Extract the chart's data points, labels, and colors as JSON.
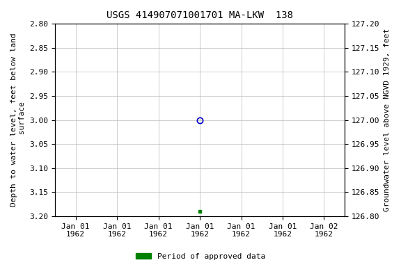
{
  "title": "USGS 414907071001701 MA-LKW  138",
  "ylabel_left": "Depth to water level, feet below land\n surface",
  "ylabel_right": "Groundwater level above NGVD 1929, feet",
  "ylim_left": [
    2.8,
    3.2
  ],
  "ylim_right": [
    127.2,
    126.8
  ],
  "yticks_left": [
    2.8,
    2.85,
    2.9,
    2.95,
    3.0,
    3.05,
    3.1,
    3.15,
    3.2
  ],
  "yticks_right": [
    127.2,
    127.15,
    127.1,
    127.05,
    127.0,
    126.95,
    126.9,
    126.85,
    126.8
  ],
  "data_point_y_circle": 3.0,
  "data_point_y_square": 3.19,
  "circle_color": "#0000cc",
  "square_color": "#008000",
  "legend_label": "Period of approved data",
  "legend_color": "#008000",
  "bg_color": "#ffffff",
  "grid_color": "#bbbbbb",
  "title_fontsize": 10,
  "label_fontsize": 8,
  "tick_fontsize": 8,
  "x_ticks_num": 7,
  "x_tick_labels": [
    "Jan 01\n1962",
    "Jan 01\n1962",
    "Jan 01\n1962",
    "Jan 01\n1962",
    "Jan 01\n1962",
    "Jan 01\n1962",
    "Jan 02\n1962"
  ],
  "data_x": 3.0,
  "xlim": [
    -0.5,
    6.5
  ]
}
